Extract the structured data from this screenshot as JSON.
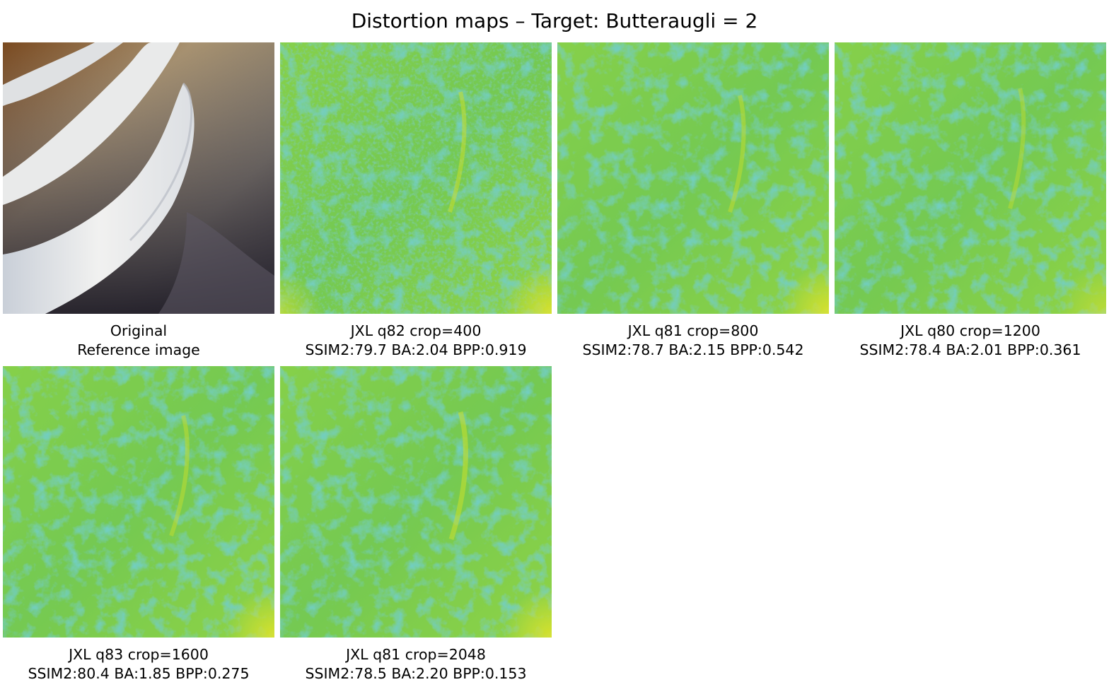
{
  "figure": {
    "title": "Distortion maps – Target: Butteraugli = 2"
  },
  "panels": [
    {
      "kind": "original",
      "line1": "Original",
      "line2": "Reference image"
    },
    {
      "kind": "distortion",
      "line1": "JXL q82 crop=400",
      "line2": "SSIM2:79.7 BA:2.04 BPP:0.919"
    },
    {
      "kind": "distortion",
      "line1": "JXL q81 crop=800",
      "line2": "SSIM2:78.7 BA:2.15 BPP:0.542"
    },
    {
      "kind": "distortion",
      "line1": "JXL q80 crop=1200",
      "line2": "SSIM2:78.4 BA:2.01 BPP:0.361"
    },
    {
      "kind": "distortion",
      "line1": "JXL q83 crop=1600",
      "line2": "SSIM2:80.4 BA:1.85 BPP:0.275"
    },
    {
      "kind": "distortion",
      "line1": "JXL q81 crop=2048",
      "line2": "SSIM2:78.5 BA:2.20 BPP:0.153"
    }
  ],
  "colormap": {
    "low": "#2a9f86",
    "mid": "#7fcf4f",
    "high": "#d4e12a"
  }
}
